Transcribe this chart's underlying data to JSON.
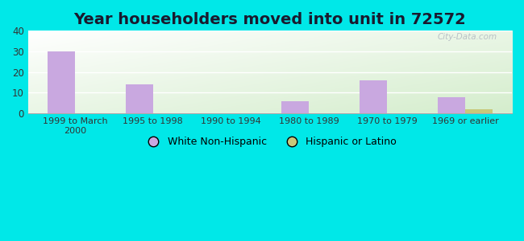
{
  "title": "Year householders moved into unit in 72572",
  "categories": [
    "1999 to March\n2000",
    "1995 to 1998",
    "1990 to 1994",
    "1980 to 1989",
    "1970 to 1979",
    "1969 or earlier"
  ],
  "white_values": [
    30,
    14,
    0,
    6,
    16,
    8
  ],
  "hispanic_values": [
    0,
    0,
    0,
    0,
    0,
    2
  ],
  "white_color": "#c9a8e0",
  "hispanic_color": "#c8c87a",
  "ylim": [
    0,
    40
  ],
  "yticks": [
    0,
    10,
    20,
    30,
    40
  ],
  "background_outer": "#00e8e8",
  "watermark": "City-Data.com",
  "title_fontsize": 14,
  "bar_width": 0.35,
  "title_color": "#1a1a2e"
}
